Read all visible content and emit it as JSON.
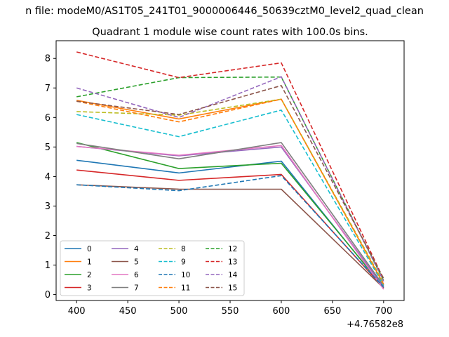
{
  "chart_data": {
    "type": "line",
    "suptitle": "n file: modeM0/AS1T05_241T01_9000006446_50639cztM0_level2_quad_clean",
    "title": "Quadrant 1 module wise count rates with 100.0s bins.",
    "xlabel": "",
    "ylabel": "",
    "x_offset_label": "+4.76582e8",
    "x": [
      400,
      500,
      600,
      700
    ],
    "xlim": [
      380,
      720
    ],
    "ylim": [
      -0.2,
      8.6
    ],
    "xticks": [
      400,
      450,
      500,
      550,
      600,
      650,
      700
    ],
    "yticks": [
      0,
      1,
      2,
      3,
      4,
      5,
      6,
      7,
      8
    ],
    "legend_position": "lower-left",
    "series": [
      {
        "name": "0",
        "values": [
          4.55,
          4.12,
          4.52,
          0.22
        ],
        "color": "#1f77b4",
        "dash": "solid"
      },
      {
        "name": "1",
        "values": [
          6.58,
          5.95,
          6.62,
          0.35
        ],
        "color": "#ff7f0e",
        "dash": "solid"
      },
      {
        "name": "2",
        "values": [
          5.15,
          4.27,
          4.45,
          0.25
        ],
        "color": "#2ca02c",
        "dash": "solid"
      },
      {
        "name": "3",
        "values": [
          4.22,
          3.87,
          4.07,
          0.22
        ],
        "color": "#d62728",
        "dash": "solid"
      },
      {
        "name": "4",
        "values": [
          5.02,
          4.7,
          5.0,
          0.25
        ],
        "color": "#9467bd",
        "dash": "solid"
      },
      {
        "name": "5",
        "values": [
          3.72,
          3.57,
          3.57,
          0.22
        ],
        "color": "#8c564b",
        "dash": "solid"
      },
      {
        "name": "6",
        "values": [
          5.02,
          4.72,
          5.05,
          0.18
        ],
        "color": "#e377c2",
        "dash": "solid"
      },
      {
        "name": "7",
        "values": [
          5.12,
          4.6,
          5.15,
          0.3
        ],
        "color": "#7f7f7f",
        "dash": "solid"
      },
      {
        "name": "8",
        "values": [
          6.2,
          6.08,
          6.62,
          0.4
        ],
        "color": "#bcbd22",
        "dash": "dashed"
      },
      {
        "name": "9",
        "values": [
          6.1,
          5.35,
          6.25,
          0.32
        ],
        "color": "#17becf",
        "dash": "dashed"
      },
      {
        "name": "10",
        "values": [
          3.72,
          3.52,
          4.03,
          0.25
        ],
        "color": "#1f77b4",
        "dash": "dashed"
      },
      {
        "name": "11",
        "values": [
          6.55,
          5.85,
          6.62,
          0.35
        ],
        "color": "#ff7f0e",
        "dash": "dashed"
      },
      {
        "name": "12",
        "values": [
          6.7,
          7.35,
          7.37,
          0.48
        ],
        "color": "#2ca02c",
        "dash": "dashed"
      },
      {
        "name": "13",
        "values": [
          8.22,
          7.35,
          7.85,
          0.52
        ],
        "color": "#d62728",
        "dash": "dashed"
      },
      {
        "name": "14",
        "values": [
          7.0,
          6.0,
          7.38,
          0.45
        ],
        "color": "#9467bd",
        "dash": "dashed"
      },
      {
        "name": "15",
        "values": [
          6.55,
          6.1,
          7.08,
          0.55
        ],
        "color": "#8c564b",
        "dash": "dashed"
      }
    ]
  }
}
